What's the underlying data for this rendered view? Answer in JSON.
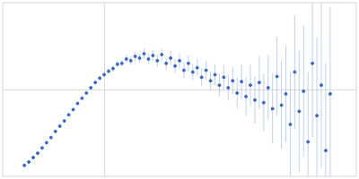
{
  "chart_data": {
    "type": "scatter",
    "color": "#3a68c0",
    "grid": true,
    "tick_labels": false,
    "marker": "circle",
    "xlim": [
      0,
      4
    ],
    "ylim": [
      0,
      2
    ],
    "xticks": [
      1.15
    ],
    "yticks": [
      1
    ],
    "x": [
      0.25,
      0.3,
      0.35,
      0.4,
      0.45,
      0.5,
      0.55,
      0.6,
      0.65,
      0.7,
      0.75,
      0.8,
      0.85,
      0.9,
      0.95,
      1.0,
      1.05,
      1.1,
      1.15,
      1.2,
      1.25,
      1.3,
      1.35,
      1.4,
      1.45,
      1.5,
      1.55,
      1.6,
      1.65,
      1.7,
      1.75,
      1.8,
      1.85,
      1.9,
      1.95,
      2.0,
      2.05,
      2.1,
      2.15,
      2.2,
      2.25,
      2.3,
      2.35,
      2.4,
      2.45,
      2.5,
      2.55,
      2.6,
      2.65,
      2.7,
      2.75,
      2.8,
      2.85,
      2.9,
      2.95,
      3.0,
      3.05,
      3.1,
      3.15,
      3.2,
      3.25,
      3.3,
      3.35,
      3.4,
      3.45,
      3.5,
      3.55,
      3.6,
      3.65,
      3.7
    ],
    "values": [
      0.13,
      0.17,
      0.22,
      0.27,
      0.33,
      0.39,
      0.45,
      0.52,
      0.58,
      0.64,
      0.71,
      0.77,
      0.84,
      0.9,
      0.96,
      1.02,
      1.08,
      1.13,
      1.17,
      1.21,
      1.24,
      1.29,
      1.3,
      1.35,
      1.33,
      1.38,
      1.36,
      1.41,
      1.35,
      1.39,
      1.33,
      1.4,
      1.3,
      1.36,
      1.27,
      1.33,
      1.22,
      1.3,
      1.2,
      1.25,
      1.14,
      1.22,
      1.1,
      1.17,
      1.05,
      1.14,
      1.02,
      1.1,
      0.96,
      1.09,
      0.92,
      1.05,
      0.88,
      1.08,
      0.85,
      1.02,
      0.78,
      1.15,
      0.82,
      0.95,
      0.6,
      1.2,
      0.75,
      0.98,
      0.4,
      1.3,
      0.7,
      1.05,
      0.3,
      0.95
    ],
    "errors": [
      0.005,
      0.005,
      0.006,
      0.006,
      0.007,
      0.008,
      0.009,
      0.01,
      0.01,
      0.012,
      0.013,
      0.014,
      0.015,
      0.017,
      0.018,
      0.02,
      0.022,
      0.025,
      0.03,
      0.03,
      0.035,
      0.04,
      0.04,
      0.045,
      0.05,
      0.05,
      0.055,
      0.06,
      0.06,
      0.065,
      0.07,
      0.07,
      0.075,
      0.08,
      0.08,
      0.085,
      0.09,
      0.09,
      0.095,
      0.1,
      0.1,
      0.11,
      0.11,
      0.12,
      0.13,
      0.14,
      0.15,
      0.16,
      0.18,
      0.2,
      0.22,
      0.24,
      0.27,
      0.3,
      0.33,
      0.37,
      0.4,
      0.45,
      0.5,
      0.55,
      0.6,
      0.65,
      0.7,
      0.75,
      0.8,
      0.85,
      0.9,
      0.95,
      1.0,
      1.0
    ]
  }
}
